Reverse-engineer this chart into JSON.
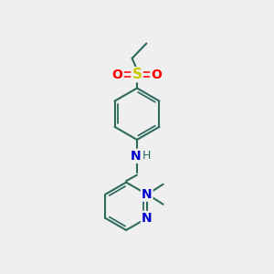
{
  "background_color": "#efefef",
  "bond_color": "#2d6b5e",
  "bond_width": 1.5,
  "N_color": "#0000cc",
  "S_color": "#cccc00",
  "O_color": "#ff0000",
  "H_color": "#2d6b5e",
  "figsize": [
    3.0,
    3.0
  ],
  "dpi": 100,
  "xlim": [
    0,
    10
  ],
  "ylim": [
    0,
    10
  ]
}
